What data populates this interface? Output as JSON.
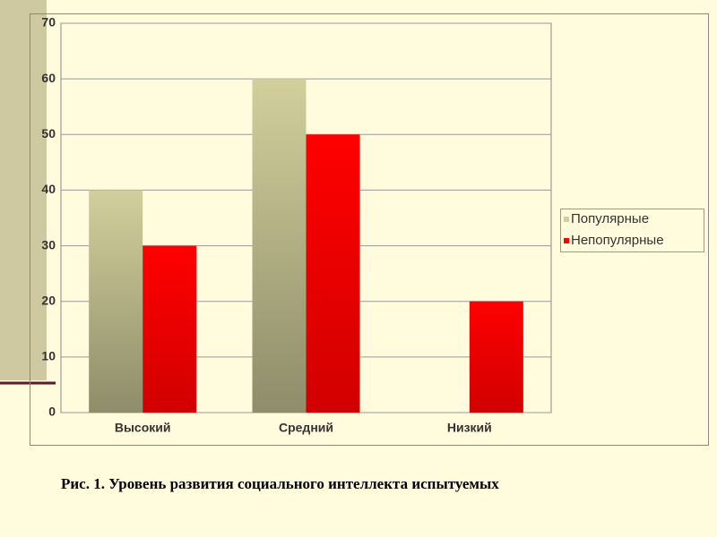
{
  "chart_data": {
    "type": "bar",
    "caption": "Рис. 1. Уровень развития социального интеллекта испытуемых",
    "categories": [
      "Высокий",
      "Средний",
      "Низкий"
    ],
    "series": [
      {
        "name": "Популярные",
        "color": "#d2cf9c",
        "values": [
          40,
          60,
          0
        ]
      },
      {
        "name": "Непопулярные",
        "color": "#ff0000",
        "values": [
          30,
          50,
          20
        ]
      }
    ],
    "ylim": [
      0,
      70
    ],
    "yticks": [
      0,
      10,
      20,
      30,
      40,
      50,
      60,
      70
    ],
    "grid": true,
    "legend": "right"
  }
}
